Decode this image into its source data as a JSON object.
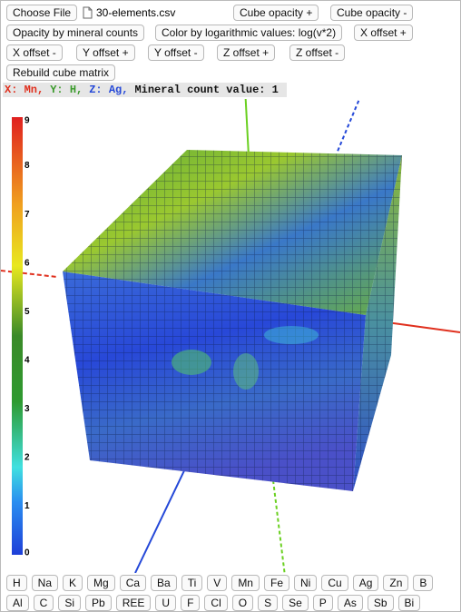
{
  "toolbar": {
    "choose_file": "Choose File",
    "file_name": "30-elements.csv",
    "buttons": [
      "Cube opacity +",
      "Cube opacity -",
      "Opacity by mineral counts",
      "Color by logarithmic values: log(v*2)",
      "X offset +",
      "X offset -",
      "Y offset +",
      "Y offset -",
      "Z offset +",
      "Z offset -",
      "Rebuild cube matrix"
    ]
  },
  "status": [
    "X: Mn,",
    "Y: H,",
    "Z: Ag,",
    "Mineral count value: 1"
  ],
  "colorbar": {
    "range": [
      0,
      9
    ],
    "ticks": [
      0,
      1,
      2,
      3,
      4,
      5,
      6,
      7,
      8,
      9
    ]
  },
  "elements": [
    [
      "H",
      "Na",
      "K",
      "Mg",
      "Ca",
      "Ba",
      "Ti",
      "V",
      "Mn",
      "Fe",
      "Ni",
      "Cu",
      "Ag",
      "Zn",
      "B"
    ],
    [
      "Al",
      "C",
      "Si",
      "Pb",
      "REE",
      "U",
      "F",
      "Cl",
      "O",
      "S",
      "Se",
      "P",
      "As",
      "Sb",
      "Bi"
    ]
  ]
}
